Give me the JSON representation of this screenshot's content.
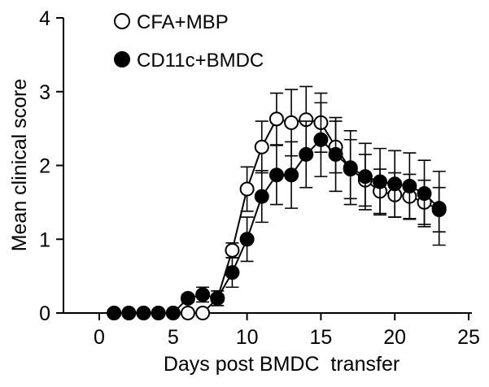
{
  "chart_data": {
    "type": "line",
    "xlabel": "Days post BMDC  transfer",
    "ylabel": "Mean clinical score",
    "xlim": [
      0,
      25
    ],
    "ylim": [
      0,
      4
    ],
    "xticks": [
      0,
      5,
      10,
      15,
      20,
      25
    ],
    "yticks": [
      0,
      1,
      2,
      3,
      4
    ],
    "grid": false,
    "legend_position": "top-left",
    "series": [
      {
        "name": "CFA+MBP",
        "marker": "open-circle",
        "color": "#000000",
        "x": [
          1,
          2,
          3,
          4,
          5,
          6,
          7,
          8,
          9,
          10,
          11,
          12,
          13,
          14,
          15,
          16,
          17,
          18,
          19,
          20,
          21,
          22,
          23
        ],
        "y": [
          0,
          0,
          0,
          0,
          0,
          0,
          0,
          0.2,
          0.85,
          1.68,
          2.25,
          2.63,
          2.58,
          2.62,
          2.58,
          2.25,
          1.95,
          1.8,
          1.65,
          1.6,
          1.58,
          1.5,
          1.4
        ],
        "error": [
          0,
          0,
          0,
          0,
          0,
          0,
          0,
          0.05,
          0.1,
          0.3,
          0.35,
          0.35,
          0.45,
          0.45,
          0.4,
          0.35,
          0.4,
          0.35,
          0.3,
          0.3,
          0.3,
          0.3,
          0.3
        ]
      },
      {
        "name": "CD11c+BMDC",
        "marker": "filled-circle",
        "color": "#000000",
        "x": [
          1,
          2,
          3,
          4,
          5,
          6,
          7,
          8,
          9,
          10,
          11,
          12,
          13,
          14,
          15,
          16,
          17,
          18,
          19,
          20,
          21,
          22,
          23
        ],
        "y": [
          0,
          0,
          0,
          0,
          0,
          0.2,
          0.25,
          0.2,
          0.55,
          1.0,
          1.58,
          1.87,
          1.87,
          2.15,
          2.35,
          2.15,
          1.97,
          1.85,
          1.78,
          1.75,
          1.72,
          1.62,
          1.42
        ],
        "error": [
          0,
          0,
          0,
          0,
          0,
          0.05,
          0.1,
          0.1,
          0.2,
          0.3,
          0.35,
          0.4,
          0.45,
          0.45,
          0.5,
          0.5,
          0.5,
          0.45,
          0.45,
          0.45,
          0.45,
          0.45,
          0.5
        ]
      }
    ]
  }
}
